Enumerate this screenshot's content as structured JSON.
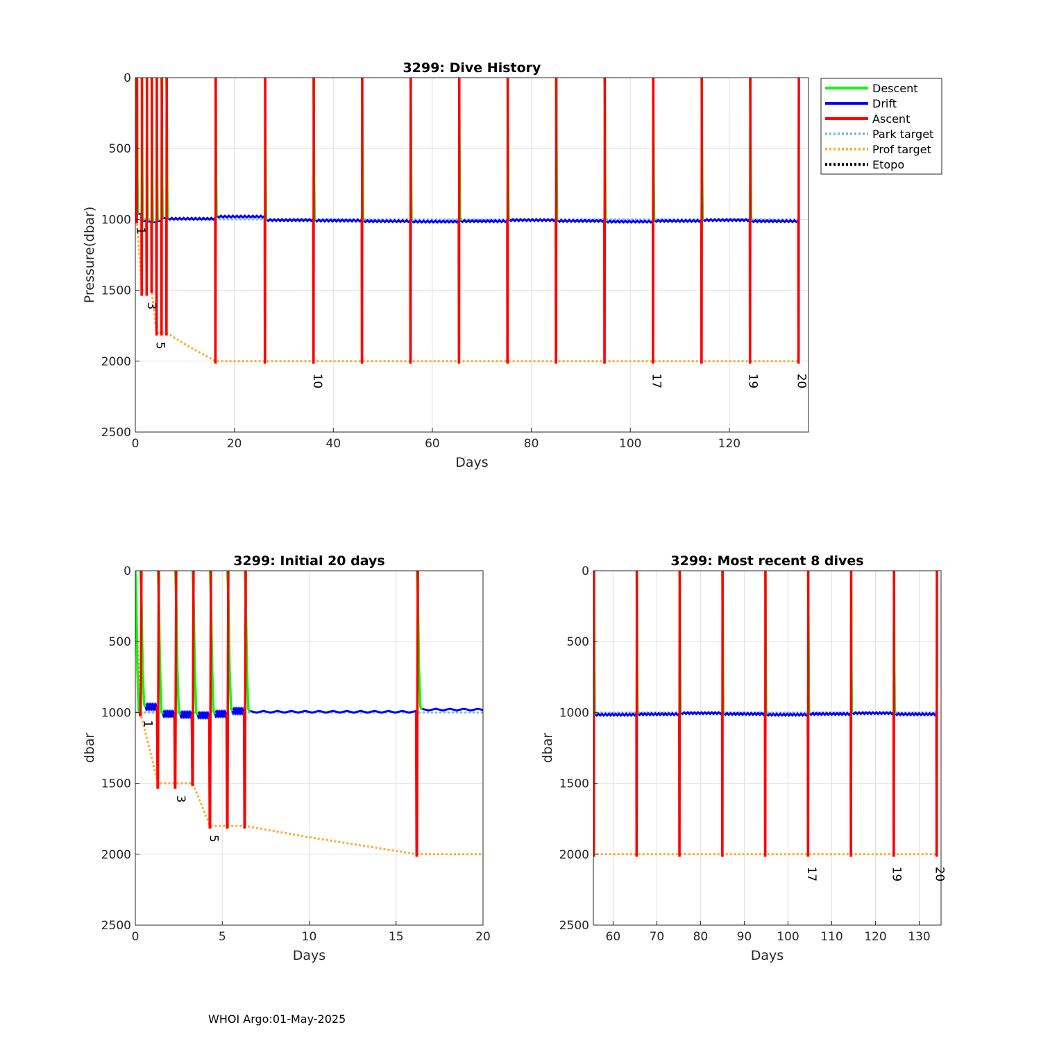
{
  "footer": "WHOI Argo:01-May-2025",
  "colors": {
    "descent": "#00ff00",
    "drift": "#0000ff",
    "ascent": "#ff0000",
    "park_target": "#7fbfdf",
    "prof_target": "#ffaa33",
    "etopo": "#000000",
    "grid": "#e0e0e0"
  },
  "legend": [
    "Descent",
    "Drift",
    "Ascent",
    "Park target",
    "Prof target",
    "Etopo"
  ],
  "chart_data": [
    {
      "id": "history",
      "type": "line",
      "title": "3299: Dive History",
      "xlabel": "Days",
      "ylabel": "Pressure(dbar)",
      "xlim": [
        0,
        136
      ],
      "ylim": [
        0,
        2500
      ],
      "y_reversed": true,
      "xticks": [
        0,
        20,
        40,
        60,
        80,
        100,
        120
      ],
      "yticks": [
        0,
        500,
        1000,
        1500,
        2000,
        2500
      ],
      "grid": true,
      "legend_position": "outside top-right",
      "dive_labels": [
        {
          "text": "1",
          "x": 0.3,
          "y": 1080
        },
        {
          "text": "3",
          "x": 2.5,
          "y": 1610
        },
        {
          "text": "5",
          "x": 4.3,
          "y": 1890
        },
        {
          "text": "10",
          "x": 36.0,
          "y": 2140
        },
        {
          "text": "17",
          "x": 104.5,
          "y": 2140
        },
        {
          "text": "19",
          "x": 124.0,
          "y": 2140
        },
        {
          "text": "20",
          "x": 133.8,
          "y": 2140
        }
      ]
    },
    {
      "id": "initial",
      "type": "line",
      "title": "3299: Initial 20 days",
      "xlabel": "Days",
      "ylabel": "dbar",
      "xlim": [
        0,
        20
      ],
      "ylim": [
        0,
        2500
      ],
      "y_reversed": true,
      "xticks": [
        0,
        5,
        10,
        15,
        20
      ],
      "yticks": [
        0,
        500,
        1000,
        1500,
        2000,
        2500
      ],
      "grid": true,
      "dive_labels": [
        {
          "text": "1",
          "x": 0.5,
          "y": 1080
        },
        {
          "text": "3",
          "x": 2.4,
          "y": 1610
        },
        {
          "text": "5",
          "x": 4.3,
          "y": 1890
        }
      ]
    },
    {
      "id": "recent",
      "type": "line",
      "title": "3299: Most recent 8 dives",
      "xlabel": "Days",
      "ylabel": "dbar",
      "xlim": [
        55.5,
        135
      ],
      "ylim": [
        0,
        2500
      ],
      "y_reversed": true,
      "xticks": [
        60,
        70,
        80,
        90,
        100,
        110,
        120,
        130
      ],
      "yticks": [
        0,
        500,
        1000,
        1500,
        2000,
        2500
      ],
      "grid": true,
      "dive_labels": [
        {
          "text": "17",
          "x": 104.5,
          "y": 2140
        },
        {
          "text": "19",
          "x": 124.0,
          "y": 2140
        },
        {
          "text": "20",
          "x": 133.8,
          "y": 2140
        }
      ]
    }
  ],
  "series_data": {
    "dives": [
      {
        "t0": 0.0,
        "asc_x": 0.3,
        "bottom": 1020,
        "drift_p": 1010
      },
      {
        "t0": 0.3,
        "asc_x": 1.3,
        "bottom": 1530,
        "drift_p": 960
      },
      {
        "t0": 1.3,
        "asc_x": 2.3,
        "bottom": 1530,
        "drift_p": 1010
      },
      {
        "t0": 2.3,
        "asc_x": 3.3,
        "bottom": 1510,
        "drift_p": 1015
      },
      {
        "t0": 3.3,
        "asc_x": 4.3,
        "bottom": 1810,
        "drift_p": 1020
      },
      {
        "t0": 4.3,
        "asc_x": 5.3,
        "bottom": 1810,
        "drift_p": 1010
      },
      {
        "t0": 5.3,
        "asc_x": 6.3,
        "bottom": 1810,
        "drift_p": 990
      },
      {
        "t0": 6.3,
        "asc_x": 16.2,
        "bottom": 2010,
        "drift_p": 995
      },
      {
        "t0": 16.2,
        "asc_x": 26.2,
        "bottom": 2010,
        "drift_p": 980
      },
      {
        "t0": 26.2,
        "asc_x": 36.0,
        "bottom": 2010,
        "drift_p": 1005
      },
      {
        "t0": 36.0,
        "asc_x": 45.8,
        "bottom": 2010,
        "drift_p": 1008
      },
      {
        "t0": 45.8,
        "asc_x": 55.6,
        "bottom": 2010,
        "drift_p": 1012
      },
      {
        "t0": 55.6,
        "asc_x": 65.4,
        "bottom": 2010,
        "drift_p": 1015
      },
      {
        "t0": 65.4,
        "asc_x": 75.2,
        "bottom": 2010,
        "drift_p": 1012
      },
      {
        "t0": 75.2,
        "asc_x": 85.0,
        "bottom": 2010,
        "drift_p": 1005
      },
      {
        "t0": 85.0,
        "asc_x": 94.8,
        "bottom": 2010,
        "drift_p": 1010
      },
      {
        "t0": 94.8,
        "asc_x": 104.6,
        "bottom": 2010,
        "drift_p": 1015
      },
      {
        "t0": 104.6,
        "asc_x": 114.4,
        "bottom": 2010,
        "drift_p": 1010
      },
      {
        "t0": 114.4,
        "asc_x": 124.2,
        "bottom": 2010,
        "drift_p": 1005
      },
      {
        "t0": 124.2,
        "asc_x": 134.0,
        "bottom": 2010,
        "drift_p": 1012
      }
    ],
    "park_target": {
      "x": [
        0,
        134
      ],
      "y": [
        1000,
        1000
      ]
    },
    "prof_target": {
      "x": [
        0,
        0.3,
        1.3,
        3.3,
        4.3,
        6.3,
        10,
        16.2,
        20,
        134
      ],
      "y": [
        150,
        1000,
        1500,
        1500,
        1800,
        1800,
        1880,
        2000,
        2000,
        2000
      ]
    }
  }
}
